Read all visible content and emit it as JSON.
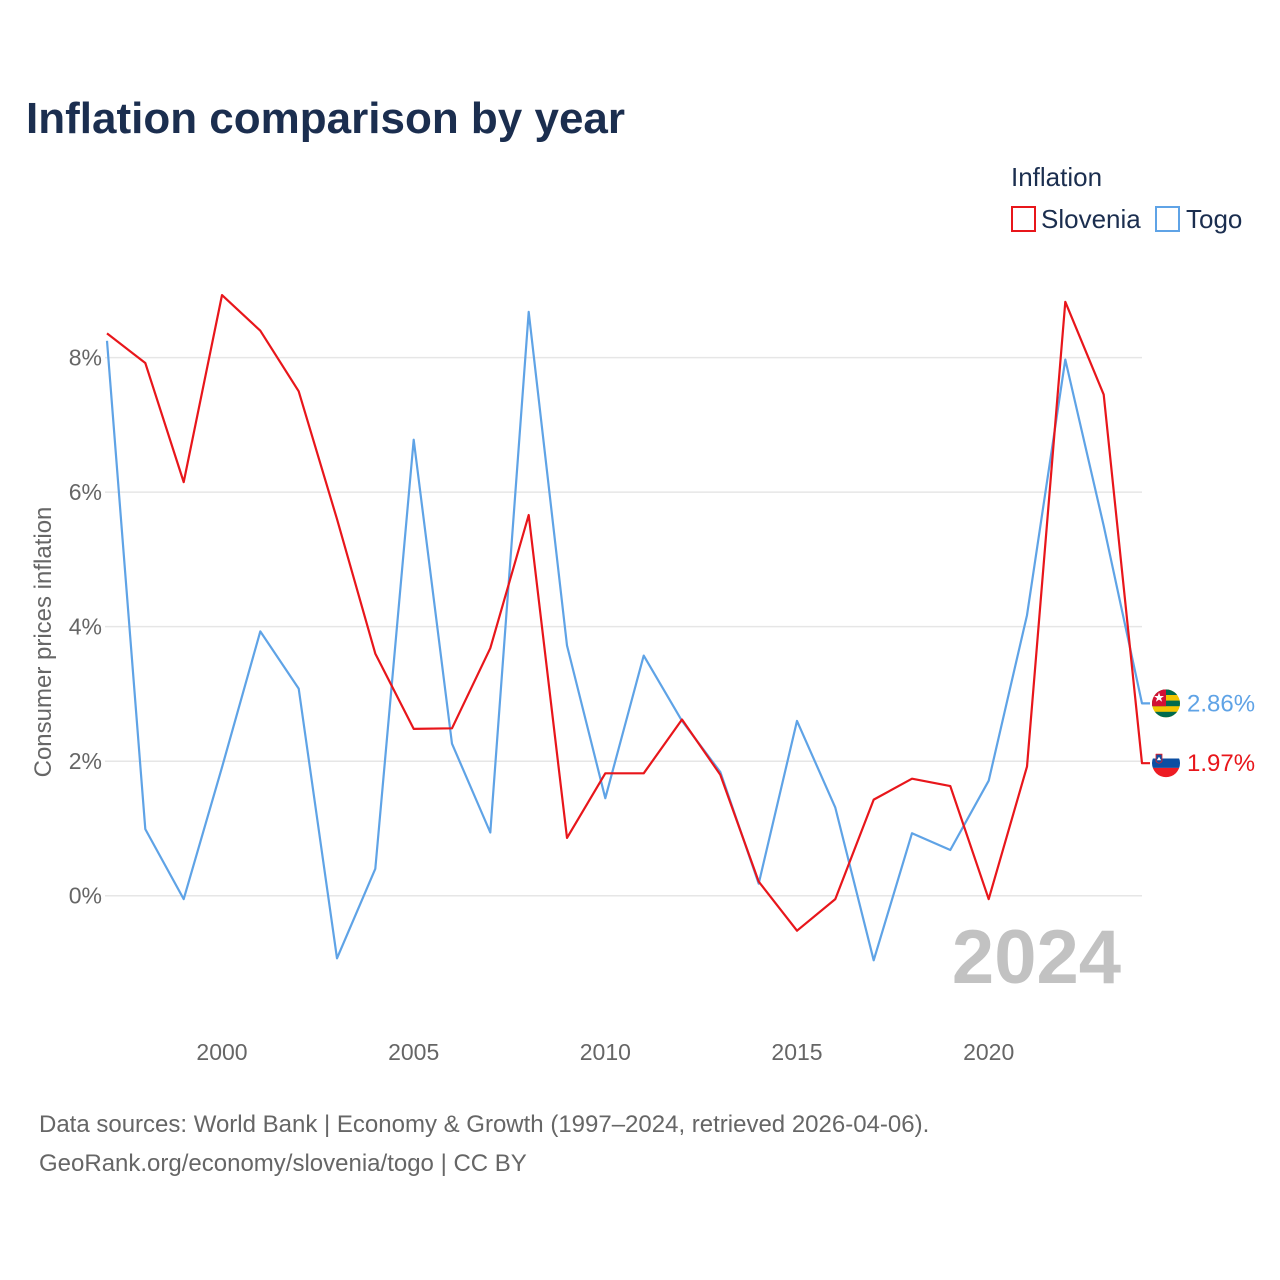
{
  "chart_data": {
    "type": "line",
    "title": "Inflation comparison by year",
    "legend_title": "Inflation",
    "ylabel": "Consumer prices inflation",
    "xlabel": "",
    "x": [
      1997,
      1998,
      1999,
      2000,
      2001,
      2002,
      2003,
      2004,
      2005,
      2006,
      2007,
      2008,
      2009,
      2010,
      2011,
      2012,
      2013,
      2014,
      2015,
      2016,
      2017,
      2018,
      2019,
      2020,
      2021,
      2022,
      2023,
      2024
    ],
    "xlim": [
      1997,
      2024
    ],
    "ylim": [
      -1.55,
      9.6
    ],
    "y_ticks": [
      0,
      2,
      4,
      6,
      8
    ],
    "y_tick_labels": [
      "0%",
      "2%",
      "4%",
      "6%",
      "8%"
    ],
    "x_ticks": [
      2000,
      2005,
      2010,
      2015,
      2020
    ],
    "x_tick_labels": [
      "2000",
      "2005",
      "2010",
      "2015",
      "2020"
    ],
    "current_year": "2024",
    "series": [
      {
        "name": "Slovenia",
        "color": "#e8161b",
        "end_label": "1.97%",
        "flag": "slovenia-flag",
        "values": [
          8.36,
          7.92,
          6.15,
          8.93,
          8.4,
          7.5,
          5.6,
          3.6,
          2.48,
          2.49,
          3.68,
          5.66,
          0.86,
          1.82,
          1.82,
          2.62,
          1.8,
          0.21,
          -0.52,
          -0.05,
          1.43,
          1.74,
          1.63,
          -0.05,
          1.92,
          8.83,
          7.45,
          1.97
        ]
      },
      {
        "name": "Togo",
        "color": "#5fa3e6",
        "end_label": "2.86%",
        "flag": "togo-flag",
        "values": [
          8.25,
          0.99,
          -0.05,
          1.91,
          3.93,
          3.08,
          -0.93,
          0.4,
          6.78,
          2.26,
          0.94,
          8.68,
          3.72,
          1.45,
          3.57,
          2.6,
          1.84,
          0.18,
          2.6,
          1.31,
          -0.96,
          0.93,
          0.68,
          1.71,
          4.17,
          7.97,
          5.5,
          2.86
        ]
      }
    ]
  },
  "footer": {
    "line1": "Data sources: World Bank | Economy & Growth (1997–2024, retrieved 2026-04-06).",
    "line2": "GeoRank.org/economy/slovenia/togo | CC BY"
  }
}
